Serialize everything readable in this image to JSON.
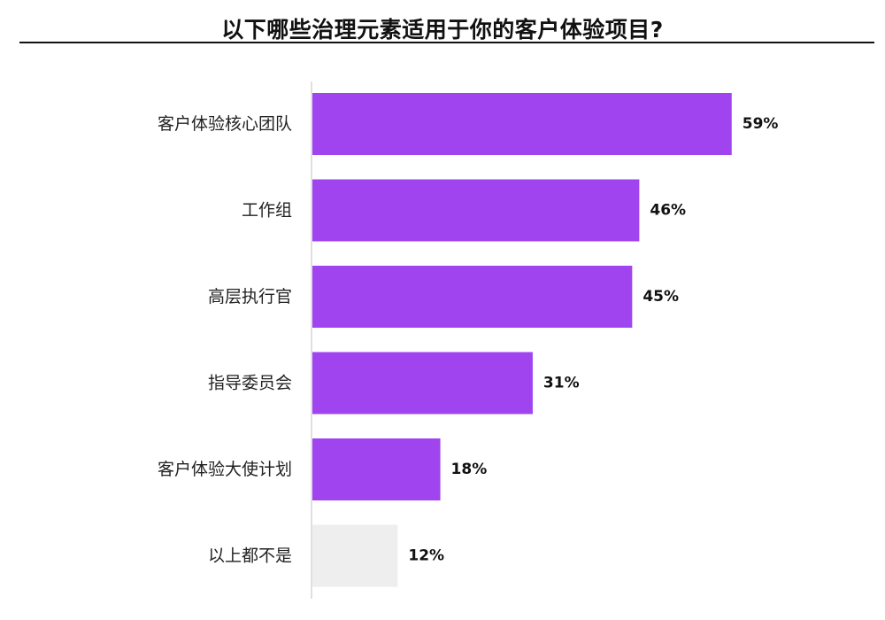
{
  "title": "以下哪些治理元素适用于你的客户体验项目?",
  "colors": {
    "primary_bar": "#A044F0",
    "none_bar": "#EEEEEE",
    "axis": "#CCCCCC",
    "title_rule": "#111111"
  },
  "chart_data": {
    "type": "bar",
    "orientation": "horizontal",
    "title": "以下哪些治理元素适用于你的客户体验项目?",
    "categories": [
      "客户体验核心团队",
      "工作组",
      "高层执行官",
      "指导委员会",
      "客户体验大使计划",
      "以上都不是"
    ],
    "values": [
      59,
      46,
      45,
      31,
      18,
      12
    ],
    "value_labels": [
      "59%",
      "46%",
      "45%",
      "31%",
      "18%",
      "12%"
    ],
    "unit": "%",
    "xlabel": "",
    "ylabel": "",
    "xlim": [
      0,
      100
    ],
    "grid": false,
    "legend": "none",
    "bar_colors": [
      "#A044F0",
      "#A044F0",
      "#A044F0",
      "#A044F0",
      "#A044F0",
      "#EEEEEE"
    ]
  }
}
